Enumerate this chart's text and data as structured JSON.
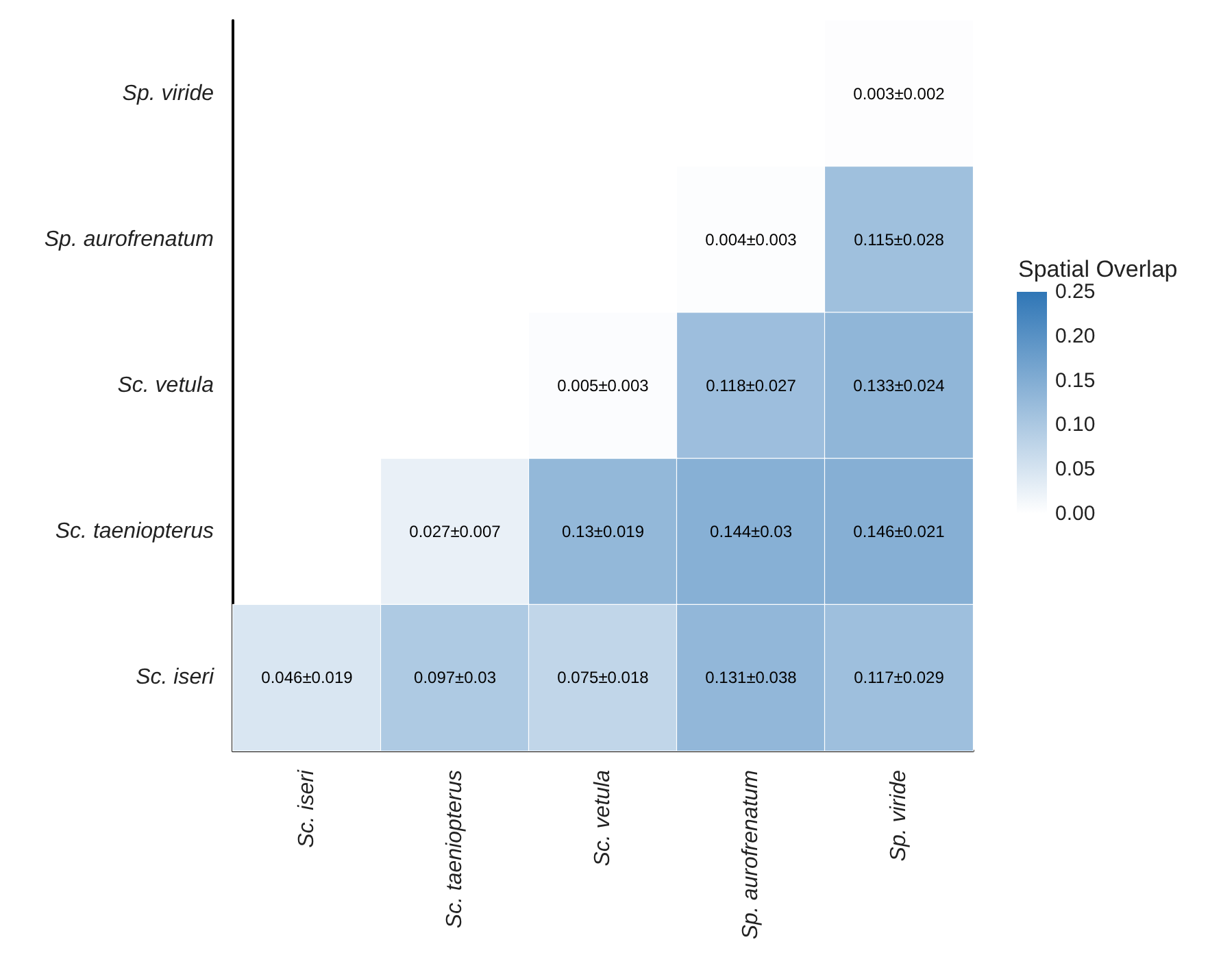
{
  "chart_data": {
    "type": "heatmap",
    "clabel": "Spatial Overlap",
    "categories": [
      "Sc. iseri",
      "Sc. taeniopterus",
      "Sc. vetula",
      "Sp. aurofrenatum",
      "Sp. viride"
    ],
    "y_categories": [
      "Sp. viride",
      "Sp. aurofrenatum",
      "Sc. vetula",
      "Sc. taeniopterus",
      "Sc. iseri"
    ],
    "cells": [
      [
        null,
        null,
        null,
        null,
        0.003
      ],
      [
        null,
        null,
        null,
        0.004,
        0.115
      ],
      [
        null,
        null,
        0.005,
        0.118,
        0.133
      ],
      [
        null,
        0.027,
        0.13,
        0.144,
        0.146
      ],
      [
        0.046,
        0.097,
        0.075,
        0.131,
        0.117
      ]
    ],
    "cell_labels": [
      [
        null,
        null,
        null,
        null,
        "0.003±0.002"
      ],
      [
        null,
        null,
        null,
        "0.004±0.003",
        "0.115±0.028"
      ],
      [
        null,
        null,
        "0.005±0.003",
        "0.118±0.027",
        "0.133±0.024"
      ],
      [
        null,
        "0.027±0.007",
        "0.13±0.019",
        "0.144±0.03",
        "0.146±0.021"
      ],
      [
        "0.046±0.019",
        "0.097±0.03",
        "0.075±0.018",
        "0.131±0.038",
        "0.117±0.029"
      ]
    ],
    "clim": [
      0,
      0.25
    ],
    "cticks": [
      {
        "value": 0,
        "label": "0.00"
      },
      {
        "value": 0.05,
        "label": "0.05"
      },
      {
        "value": 0.1,
        "label": "0.10"
      },
      {
        "value": 0.15,
        "label": "0.15"
      },
      {
        "value": 0.2,
        "label": "0.20"
      },
      {
        "value": 0.25,
        "label": "0.25"
      }
    ]
  }
}
